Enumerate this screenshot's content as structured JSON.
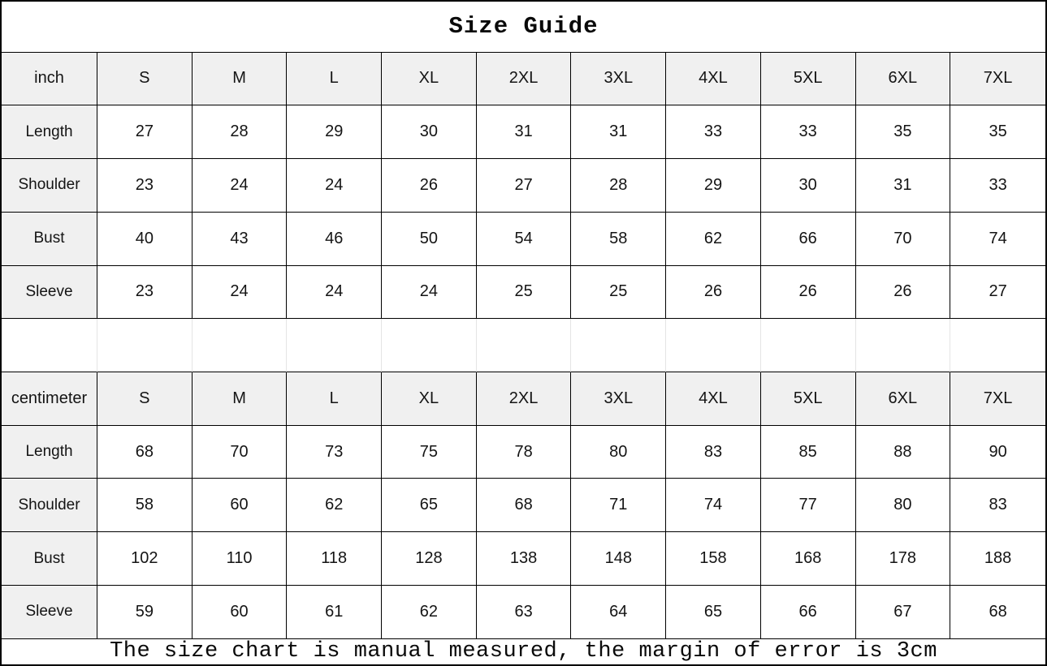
{
  "page": {
    "title": "Size Guide",
    "footer": "The size chart is manual measured, the margin of error is 3cm"
  },
  "colors": {
    "border": "#000000",
    "header_bg": "#f0f0f0",
    "cell_bg": "#ffffff",
    "gap_gridline": "#e4e4e4",
    "text": "#141414"
  },
  "chart_data": [
    {
      "type": "table",
      "title": "Size Guide",
      "unit": "inch",
      "columns": [
        "inch",
        "S",
        "M",
        "L",
        "XL",
        "2XL",
        "3XL",
        "4XL",
        "5XL",
        "6XL",
        "7XL"
      ],
      "rows": [
        {
          "label": "Length",
          "values": [
            27,
            28,
            29,
            30,
            31,
            31,
            33,
            33,
            35,
            35
          ]
        },
        {
          "label": "Shoulder",
          "values": [
            23,
            24,
            24,
            26,
            27,
            28,
            29,
            30,
            31,
            33
          ]
        },
        {
          "label": "Bust",
          "values": [
            40,
            43,
            46,
            50,
            54,
            58,
            62,
            66,
            70,
            74
          ]
        },
        {
          "label": "Sleeve",
          "values": [
            23,
            24,
            24,
            24,
            25,
            25,
            26,
            26,
            26,
            27
          ]
        }
      ]
    },
    {
      "type": "table",
      "title": "Size Guide",
      "unit": "centimeter",
      "columns": [
        "centimeter",
        "S",
        "M",
        "L",
        "XL",
        "2XL",
        "3XL",
        "4XL",
        "5XL",
        "6XL",
        "7XL"
      ],
      "rows": [
        {
          "label": "Length",
          "values": [
            68,
            70,
            73,
            75,
            78,
            80,
            83,
            85,
            88,
            90
          ]
        },
        {
          "label": "Shoulder",
          "values": [
            58,
            60,
            62,
            65,
            68,
            71,
            74,
            77,
            80,
            83
          ]
        },
        {
          "label": "Bust",
          "values": [
            102,
            110,
            118,
            128,
            138,
            148,
            158,
            168,
            178,
            188
          ]
        },
        {
          "label": "Sleeve",
          "values": [
            59,
            60,
            61,
            62,
            63,
            64,
            65,
            66,
            67,
            68
          ]
        }
      ]
    }
  ]
}
